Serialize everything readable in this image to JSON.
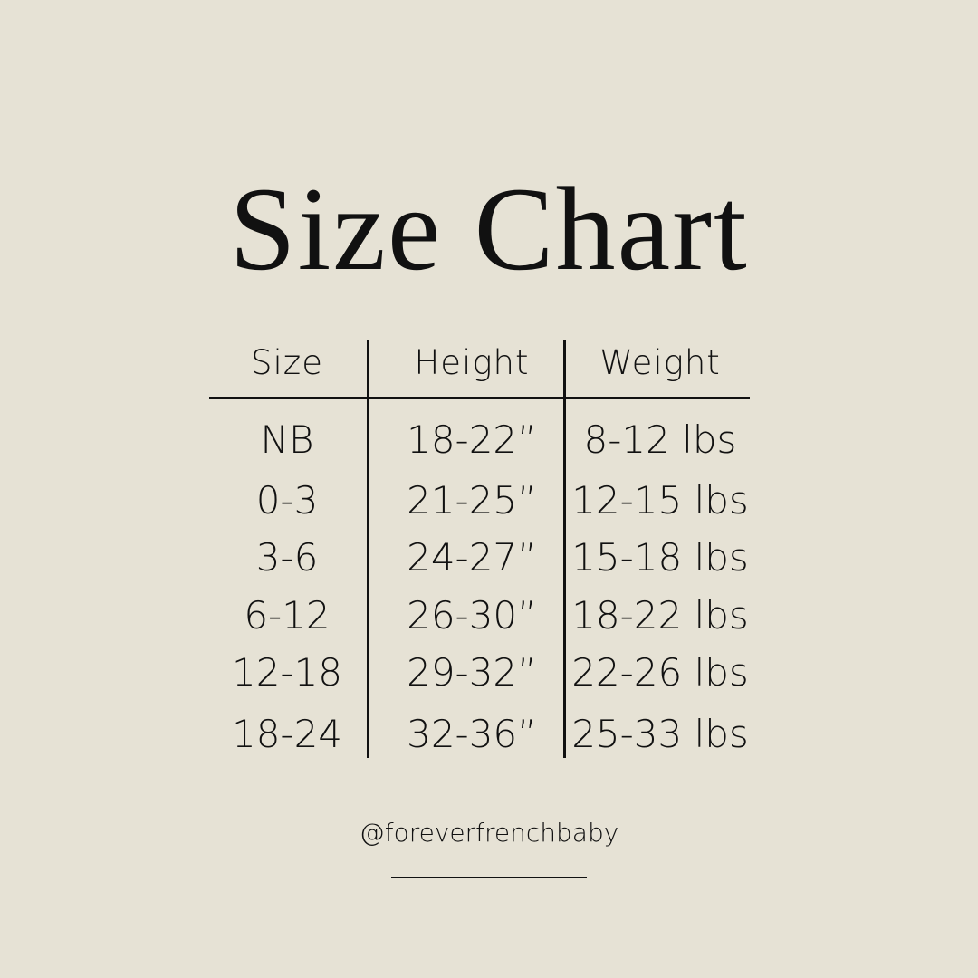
{
  "title": "Size Chart",
  "table": {
    "headers": [
      "Size",
      "Height",
      "Weight"
    ],
    "rows": [
      [
        "NB",
        "18-22”",
        "8-12 lbs"
      ],
      [
        "0-3",
        "21-25”",
        "12-15 lbs"
      ],
      [
        "3-6",
        "24-27”",
        "15-18 lbs"
      ],
      [
        "6-12",
        "26-30”",
        "18-22 lbs"
      ],
      [
        "12-18",
        "29-32”",
        "22-26 lbs"
      ],
      [
        "18-24",
        "32-36”",
        "25-33 lbs"
      ]
    ]
  },
  "handle": "@foreverfrenchbaby",
  "colors": {
    "background": "#E6E2D5",
    "text": "#111111"
  }
}
